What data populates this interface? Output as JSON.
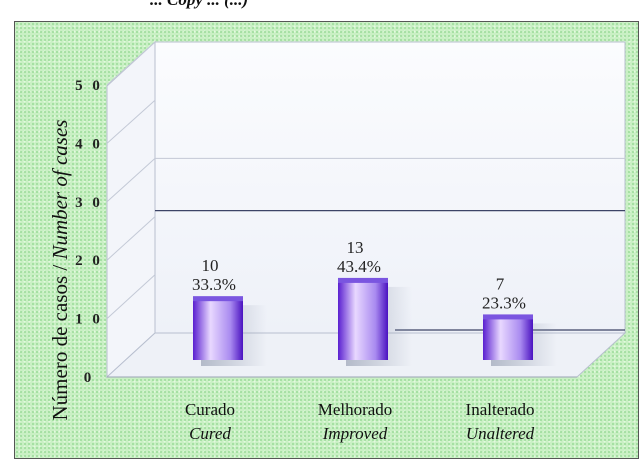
{
  "header_partial": "... Copy ... (...)",
  "chart_data": {
    "type": "bar",
    "ylabel_plain": "Número de casos / ",
    "ylabel_italic": "Number of cases",
    "ylim": [
      0,
      50
    ],
    "yticks": [
      "0",
      "1 0",
      "2 0",
      "3 0",
      "4 0",
      "5 0"
    ],
    "categories_pt": [
      "Curado",
      "Melhorado",
      "Inalterado"
    ],
    "categories_en": [
      "Cured",
      "Improved",
      "Unaltered"
    ],
    "values": [
      10,
      13,
      7
    ],
    "value_labels": [
      "10",
      "13",
      "7"
    ],
    "percent_labels": [
      "33.3%",
      "43.4%",
      "23.3%"
    ],
    "colors": {
      "bar_light": "#e8d8ff",
      "bar_mid": "#a98af0",
      "bar_dark": "#5a1fd0",
      "panel": "#f6f8fc"
    }
  }
}
